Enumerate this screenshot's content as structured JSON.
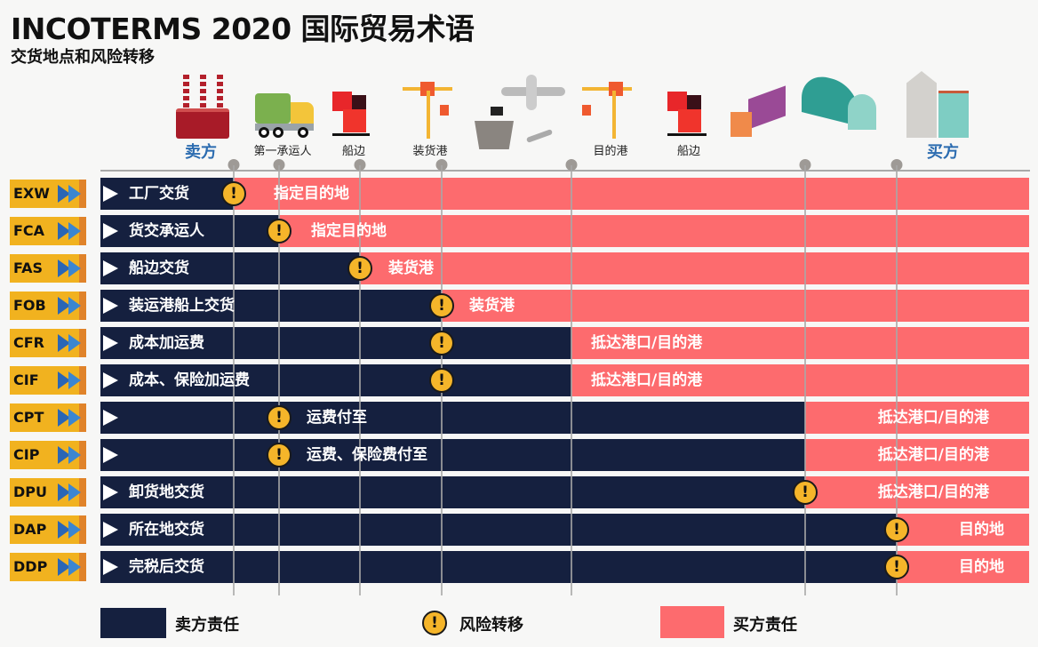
{
  "title": "INCOTERMS 2020 国际贸易术语",
  "subtitle": "交货地点和风险转移",
  "header": {
    "seller": "卖方",
    "buyer": "买方",
    "points": [
      "第一承运人",
      "船边",
      "装货港",
      "目的港",
      "船边"
    ]
  },
  "icons": [
    "factory-icon",
    "truck-icon",
    "containers-icon",
    "crane-icon",
    "ship-plane-icon",
    "crane-icon",
    "containers-icon",
    "truck-icon",
    "warehouse-icon",
    "buildings-icon"
  ],
  "rows": [
    {
      "code": "EXW",
      "seller": "工厂交货",
      "after_warning": "",
      "buyer": "指定目的地"
    },
    {
      "code": "FCA",
      "seller": "货交承运人",
      "after_warning": "",
      "buyer": "指定目的地"
    },
    {
      "code": "FAS",
      "seller": "船边交货",
      "after_warning": "",
      "buyer": "装货港"
    },
    {
      "code": "FOB",
      "seller": "装运港船上交货",
      "after_warning": "",
      "buyer": "装货港"
    },
    {
      "code": "CFR",
      "seller": "成本加运费",
      "after_warning": "",
      "buyer": "抵达港口/目的港"
    },
    {
      "code": "CIF",
      "seller": "成本、保险加运费",
      "after_warning": "",
      "buyer": "抵达港口/目的港"
    },
    {
      "code": "CPT",
      "seller": "",
      "after_warning": "运费付至",
      "buyer": "抵达港口/目的港"
    },
    {
      "code": "CIP",
      "seller": "",
      "after_warning": "运费、保险费付至",
      "buyer": "抵达港口/目的港"
    },
    {
      "code": "DPU",
      "seller": "卸货地交货",
      "after_warning": "",
      "buyer": "抵达港口/目的港"
    },
    {
      "code": "DAP",
      "seller": "所在地交货",
      "after_warning": "",
      "buyer": "目的地"
    },
    {
      "code": "DDP",
      "seller": "完税后交货",
      "after_warning": "",
      "buyer": "目的地"
    }
  ],
  "warning_glyph": "!",
  "legend": {
    "seller": "卖方责任",
    "risk": "风险转移",
    "buyer": "买方责任"
  },
  "colors": {
    "seller": "#15203f",
    "buyer": "#fd6b6e",
    "warning": "#f5b52a",
    "code": "#f1b21f",
    "party": "#2c6cb0"
  }
}
